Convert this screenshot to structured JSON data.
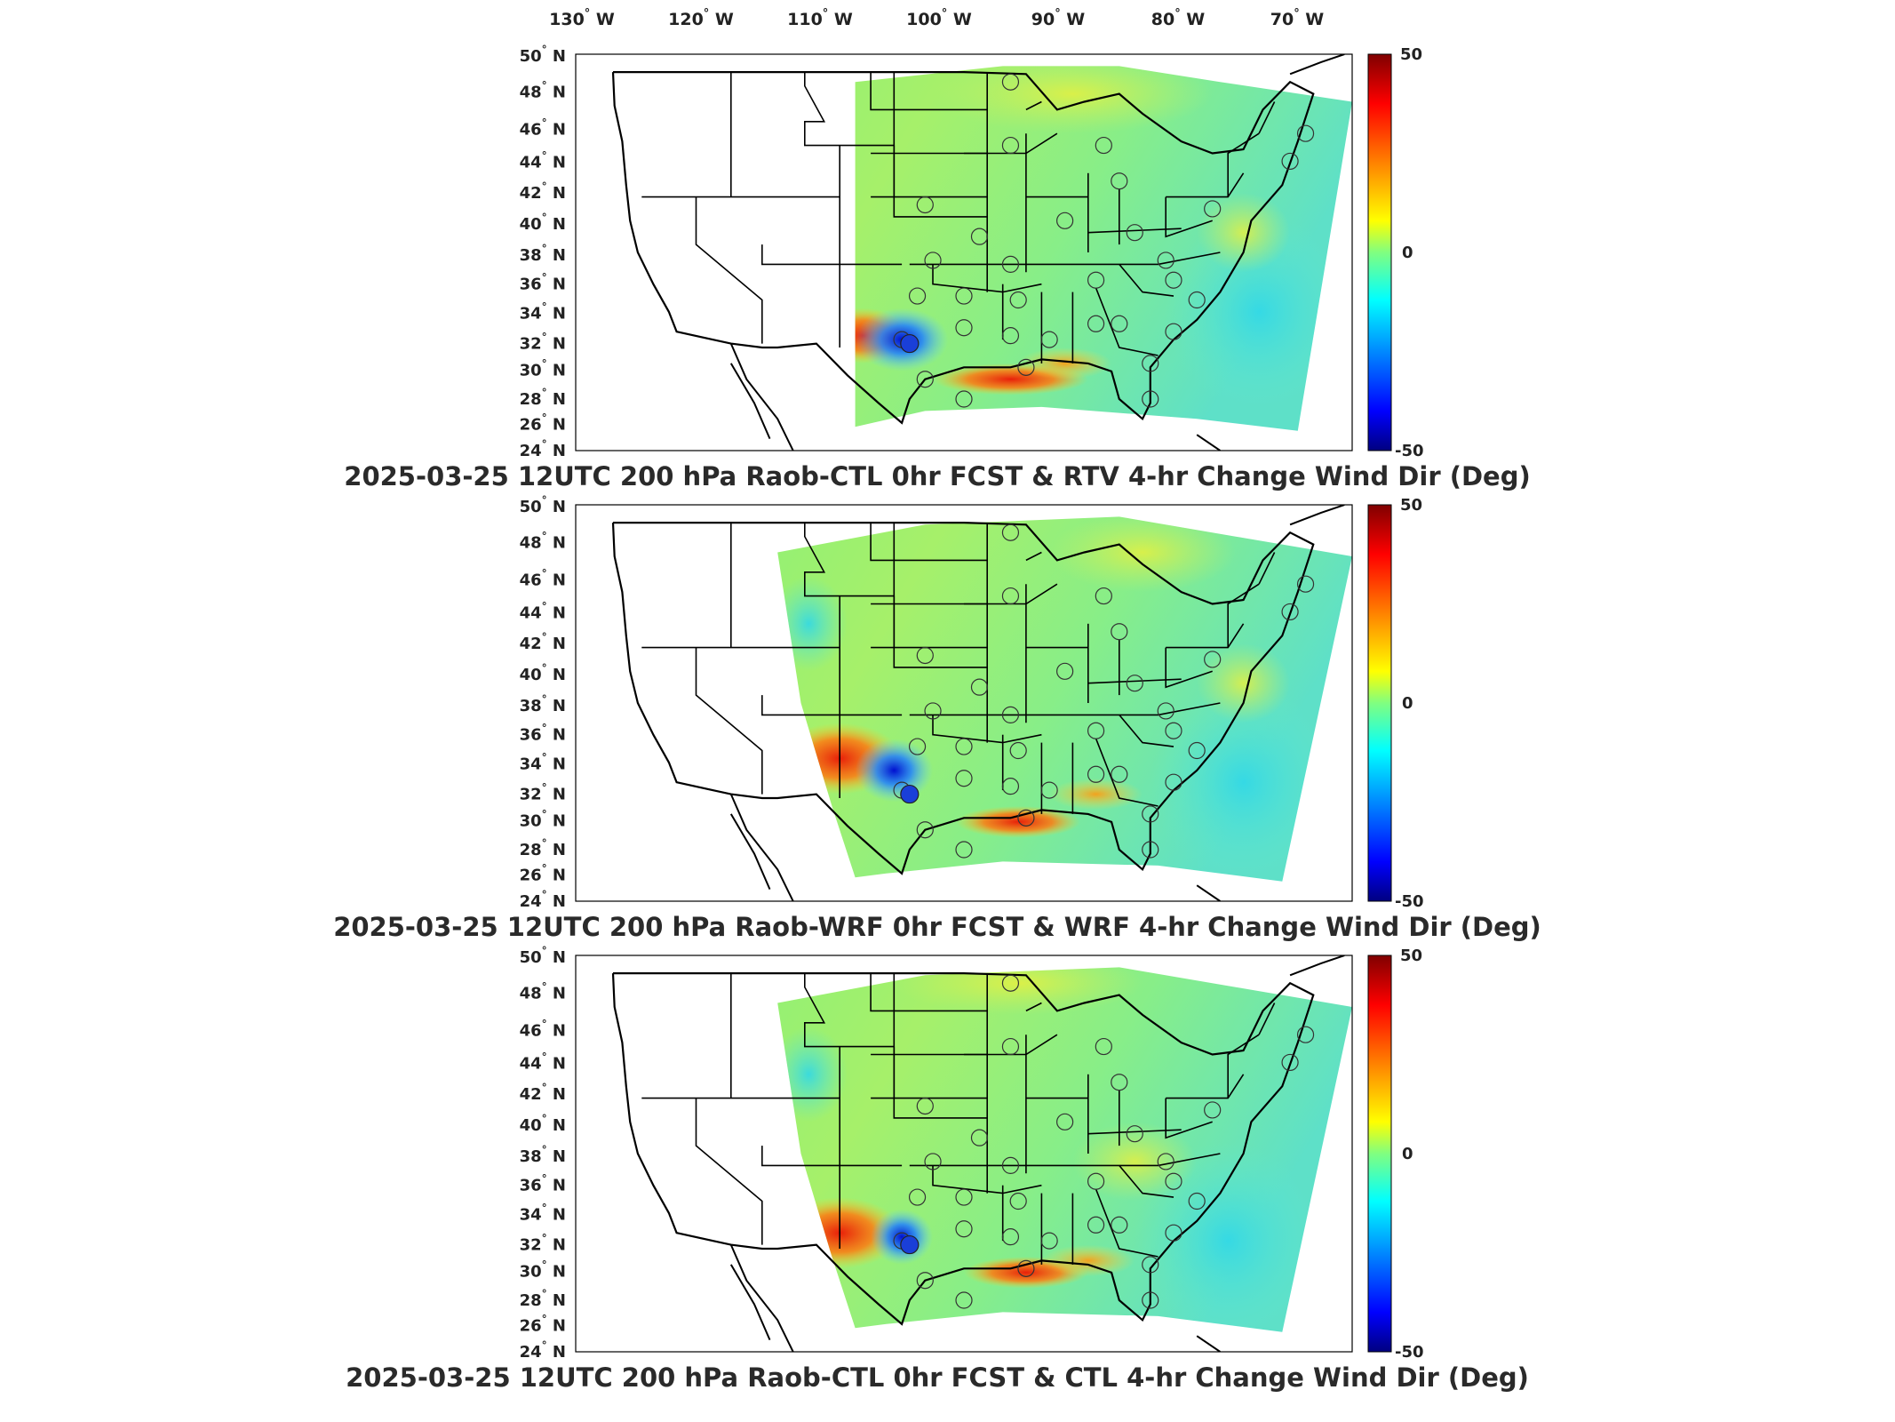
{
  "lon_labels": [
    "130",
    "120",
    "110",
    "100",
    "90",
    "80",
    "70"
  ],
  "lon_hemisphere": "W",
  "lat_labels": [
    "50",
    "48",
    "46",
    "44",
    "42",
    "40",
    "38",
    "36",
    "34",
    "32",
    "30",
    "28",
    "26",
    "24"
  ],
  "lat_hemisphere": "N",
  "degree_symbol": "°",
  "colorbar": {
    "max_label": "50",
    "mid_label": "0",
    "min_label": "-50",
    "colors": [
      "#800000",
      "#ff0000",
      "#ff8000",
      "#ffff00",
      "#80ff80",
      "#00ffff",
      "#0080ff",
      "#0000ff",
      "#000080"
    ]
  },
  "panels": [
    {
      "title": "2025-03-25 12UTC 200 hPa Raob-CTL 0hr FCST & RTV 4-hr Change Wind Dir (Deg)"
    },
    {
      "title": "2025-03-25 12UTC 200 hPa Raob-WRF 0hr FCST & WRF 4-hr Change Wind Dir (Deg)"
    },
    {
      "title": "2025-03-25 12UTC 200 hPa Raob-CTL 0hr FCST & CTL 4-hr Change Wind Dir (Deg)"
    }
  ]
}
